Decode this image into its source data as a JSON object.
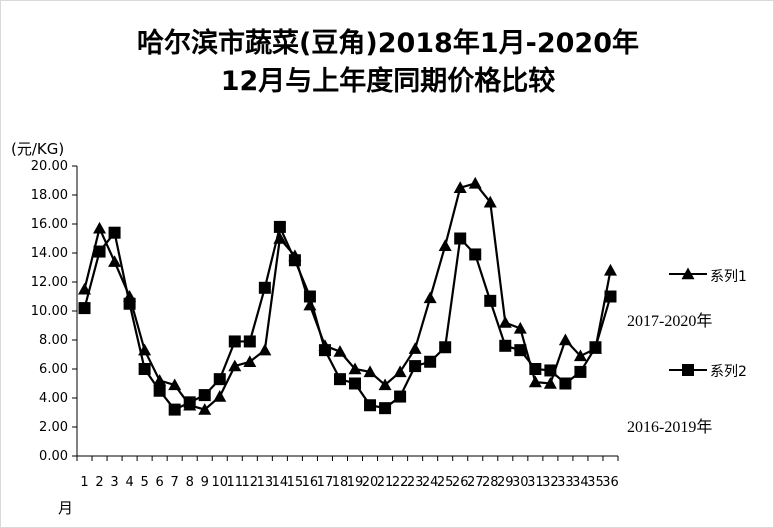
{
  "chart_data": {
    "type": "line",
    "title": "哈尔滨市蔬菜(豆角)2018年1月-2020年",
    "subtitle": "12月与上年度同期价格比较",
    "ylabel": "(元/KG)",
    "xlabel": "月",
    "ylim": [
      0,
      20
    ],
    "y_ticks": [
      "0.00",
      "2.00",
      "4.00",
      "6.00",
      "8.00",
      "10.00",
      "12.00",
      "14.00",
      "16.00",
      "18.00",
      "20.00"
    ],
    "categories": [
      "1",
      "2",
      "3",
      "4",
      "5",
      "6",
      "7",
      "8",
      "9",
      "10",
      "11",
      "12",
      "13",
      "14",
      "15",
      "16",
      "17",
      "18",
      "19",
      "20",
      "21",
      "22",
      "23",
      "24",
      "25",
      "26",
      "27",
      "28",
      "29",
      "30",
      "31",
      "32",
      "33",
      "34",
      "35",
      "36"
    ],
    "grid": false,
    "legend_position": "right",
    "series": [
      {
        "name": "系列1",
        "marker": "triangle",
        "note": "2017-2020年",
        "values": [
          11.5,
          15.7,
          13.4,
          11.0,
          7.3,
          5.2,
          4.9,
          3.5,
          3.2,
          4.1,
          6.2,
          6.5,
          7.3,
          15.0,
          13.8,
          10.4,
          7.6,
          7.2,
          6.0,
          5.8,
          4.9,
          5.8,
          7.4,
          10.9,
          14.5,
          18.5,
          18.8,
          17.5,
          9.2,
          8.8,
          5.1,
          5.0,
          8.0,
          6.9,
          7.4,
          12.8
        ]
      },
      {
        "name": "系列2",
        "marker": "square",
        "note": "2016-2019年",
        "values": [
          10.2,
          14.1,
          15.4,
          10.5,
          6.0,
          4.5,
          3.2,
          3.7,
          4.2,
          5.3,
          7.9,
          7.9,
          11.6,
          15.8,
          13.5,
          11.0,
          7.3,
          5.3,
          5.0,
          3.5,
          3.3,
          4.1,
          6.2,
          6.5,
          7.5,
          15.0,
          13.9,
          10.7,
          7.6,
          7.3,
          6.0,
          5.9,
          5.0,
          5.8,
          7.5,
          11.0
        ]
      }
    ]
  }
}
